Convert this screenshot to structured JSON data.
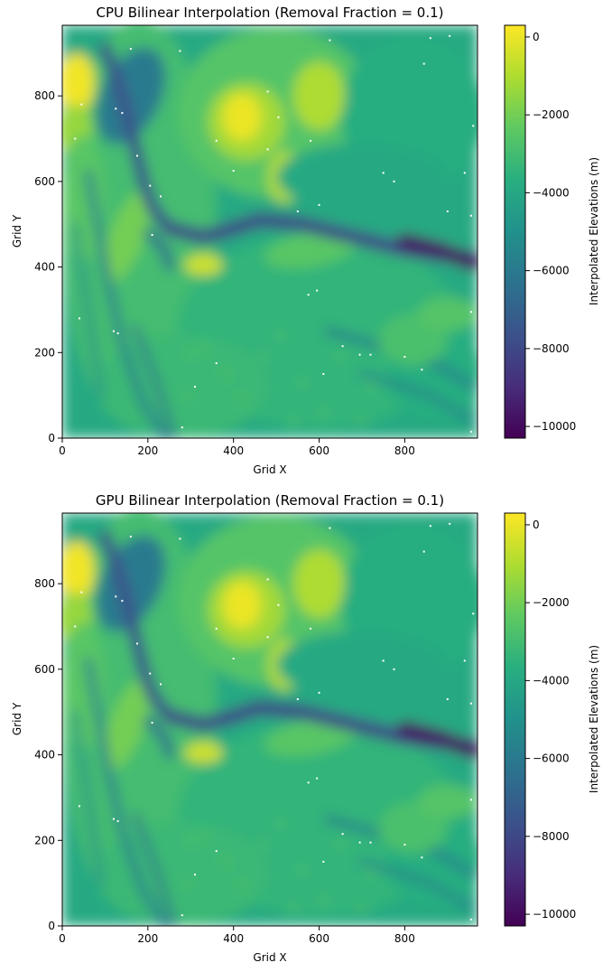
{
  "chart_data": [
    {
      "type": "heatmap",
      "title": "CPU Bilinear Interpolation (Removal Fraction = 0.1)",
      "xlabel": "Grid X",
      "ylabel": "Grid Y",
      "xlim": [
        0,
        970
      ],
      "ylim": [
        0,
        965
      ],
      "xticks": [
        0,
        200,
        400,
        600,
        800
      ],
      "yticks": [
        0,
        200,
        400,
        600,
        800
      ],
      "colorbar": {
        "label": "Interpolated Elevations (m)",
        "range": [
          -10300,
          300
        ],
        "ticks": [
          0,
          -2000,
          -4000,
          -6000,
          -8000,
          -10000
        ],
        "tick_labels": [
          "0",
          "−2000",
          "−4000",
          "−6000",
          "−8000",
          "−10000"
        ],
        "colormap": "viridis"
      },
      "features": [
        {
          "name": "central trench (x≈270→960, y≈500→420)",
          "value": -9500
        },
        {
          "name": "northwest ridge highs (x≈0–60, y≈780–880)",
          "value": 200
        },
        {
          "name": "north-central plateau (x≈380–480, y≈700–790)",
          "value": 0
        },
        {
          "name": "northwest channel (x≈100→260, y≈900→460)",
          "value": -8000
        },
        {
          "name": "southern diagonal trough (x≈120→260, y≈200→0)",
          "value": -7000
        },
        {
          "name": "southeast basin (x≈700–960, y≈60–260)",
          "value": -5000
        }
      ]
    },
    {
      "type": "heatmap",
      "title": "GPU Bilinear Interpolation (Removal Fraction = 0.1)",
      "xlabel": "Grid X",
      "ylabel": "Grid Y",
      "xlim": [
        0,
        970
      ],
      "ylim": [
        0,
        965
      ],
      "xticks": [
        0,
        200,
        400,
        600,
        800
      ],
      "yticks": [
        0,
        200,
        400,
        600,
        800
      ],
      "colorbar": {
        "label": "Interpolated Elevations (m)",
        "range": [
          -10300,
          300
        ],
        "ticks": [
          0,
          -2000,
          -4000,
          -6000,
          -8000,
          -10000
        ],
        "tick_labels": [
          "0",
          "−2000",
          "−4000",
          "−6000",
          "−8000",
          "−10000"
        ],
        "colormap": "viridis"
      },
      "features": [
        {
          "name": "central trench (x≈270→960, y≈500→420)",
          "value": -9500
        },
        {
          "name": "northwest ridge highs (x≈0–60, y≈780–880)",
          "value": 200
        },
        {
          "name": "north-central plateau (x≈380–480, y≈700–790)",
          "value": 0
        },
        {
          "name": "northwest channel (x≈100→260, y≈900→460)",
          "value": -8000
        },
        {
          "name": "southern diagonal trough (x≈120→260, y≈200→0)",
          "value": -7000
        },
        {
          "name": "southeast basin (x≈700–960, y≈60–260)",
          "value": -5000
        }
      ]
    }
  ]
}
